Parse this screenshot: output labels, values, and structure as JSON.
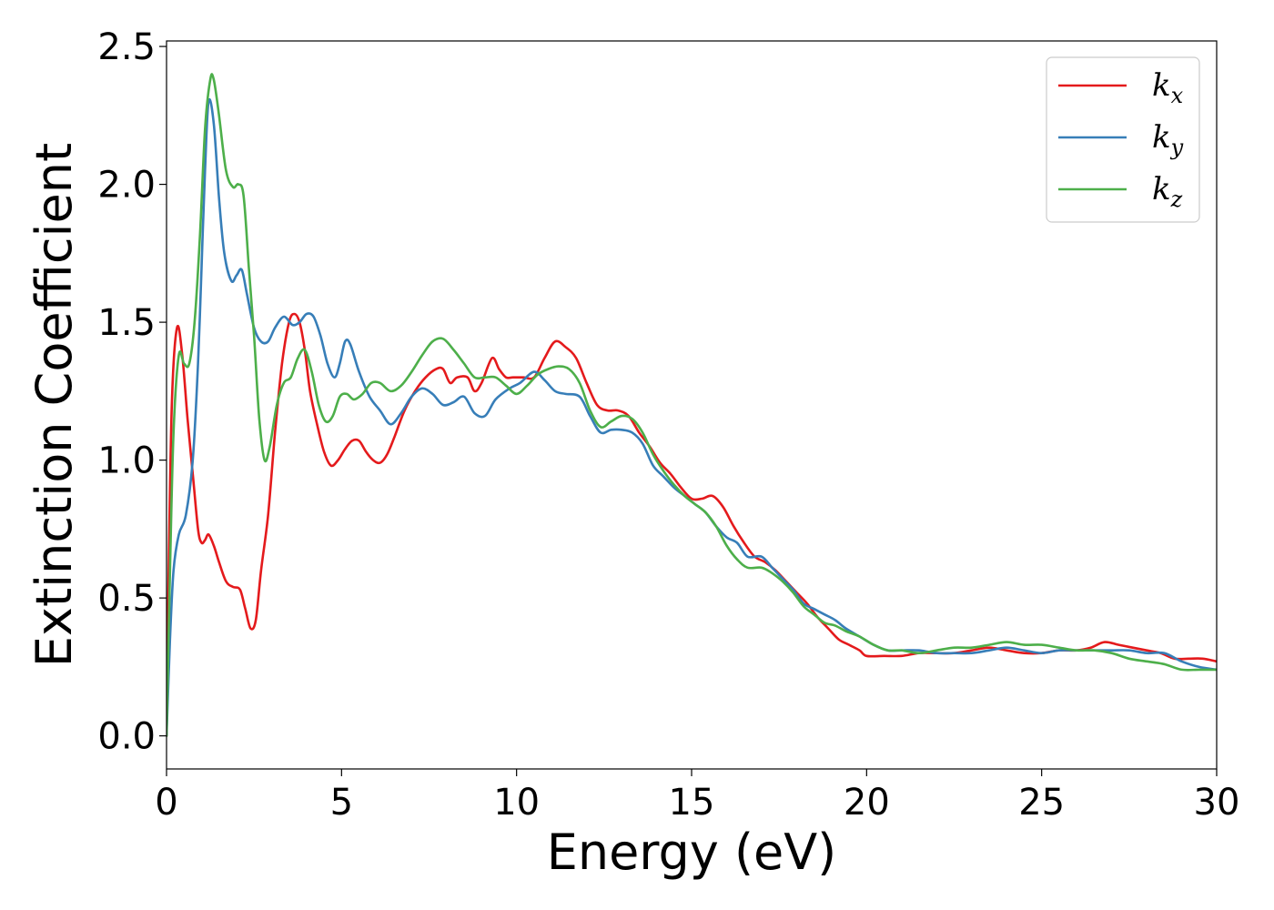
{
  "chart_data": {
    "type": "line",
    "title": "",
    "xlabel": "Energy (eV)",
    "ylabel": "Extinction Coefficient",
    "xlim": [
      0,
      30
    ],
    "ylim": [
      -0.12,
      2.52
    ],
    "xticks": [
      0,
      5,
      10,
      15,
      20,
      25,
      30
    ],
    "xtick_labels": [
      "0",
      "5",
      "10",
      "15",
      "20",
      "25",
      "30"
    ],
    "yticks": [
      0.0,
      0.5,
      1.0,
      1.5,
      2.0,
      2.5
    ],
    "ytick_labels": [
      "0.0",
      "0.5",
      "1.0",
      "1.5",
      "2.0",
      "2.5"
    ],
    "grid": false,
    "legend_position": "top-right",
    "series": [
      {
        "name": "k_x",
        "label_base": "k",
        "label_sub": "x",
        "color": "#e41a1c",
        "points": [
          [
            0,
            0
          ],
          [
            0.05,
            0.5
          ],
          [
            0.15,
            1.2
          ],
          [
            0.3,
            1.48
          ],
          [
            0.45,
            1.38
          ],
          [
            0.6,
            1.15
          ],
          [
            0.75,
            0.95
          ],
          [
            0.9,
            0.75
          ],
          [
            1.0,
            0.7
          ],
          [
            1.1,
            0.71
          ],
          [
            1.2,
            0.73
          ],
          [
            1.35,
            0.69
          ],
          [
            1.5,
            0.63
          ],
          [
            1.7,
            0.56
          ],
          [
            1.9,
            0.54
          ],
          [
            2.1,
            0.53
          ],
          [
            2.25,
            0.46
          ],
          [
            2.4,
            0.39
          ],
          [
            2.55,
            0.42
          ],
          [
            2.7,
            0.6
          ],
          [
            2.9,
            0.8
          ],
          [
            3.1,
            1.1
          ],
          [
            3.3,
            1.35
          ],
          [
            3.5,
            1.5
          ],
          [
            3.65,
            1.53
          ],
          [
            3.8,
            1.5
          ],
          [
            3.95,
            1.4
          ],
          [
            4.1,
            1.25
          ],
          [
            4.3,
            1.13
          ],
          [
            4.5,
            1.03
          ],
          [
            4.7,
            0.98
          ],
          [
            4.9,
            1.0
          ],
          [
            5.1,
            1.04
          ],
          [
            5.3,
            1.07
          ],
          [
            5.5,
            1.07
          ],
          [
            5.7,
            1.03
          ],
          [
            5.9,
            1.0
          ],
          [
            6.1,
            0.99
          ],
          [
            6.3,
            1.02
          ],
          [
            6.5,
            1.08
          ],
          [
            6.8,
            1.18
          ],
          [
            7.1,
            1.25
          ],
          [
            7.4,
            1.3
          ],
          [
            7.7,
            1.33
          ],
          [
            7.9,
            1.33
          ],
          [
            8.1,
            1.28
          ],
          [
            8.3,
            1.3
          ],
          [
            8.6,
            1.3
          ],
          [
            8.8,
            1.25
          ],
          [
            9.0,
            1.28
          ],
          [
            9.3,
            1.37
          ],
          [
            9.5,
            1.33
          ],
          [
            9.7,
            1.3
          ],
          [
            9.9,
            1.3
          ],
          [
            10.2,
            1.3
          ],
          [
            10.5,
            1.3
          ],
          [
            10.8,
            1.37
          ],
          [
            11.1,
            1.43
          ],
          [
            11.4,
            1.41
          ],
          [
            11.7,
            1.37
          ],
          [
            12.0,
            1.28
          ],
          [
            12.3,
            1.2
          ],
          [
            12.6,
            1.18
          ],
          [
            12.9,
            1.18
          ],
          [
            13.2,
            1.16
          ],
          [
            13.5,
            1.1
          ],
          [
            13.8,
            1.05
          ],
          [
            14.1,
            0.99
          ],
          [
            14.4,
            0.95
          ],
          [
            14.7,
            0.9
          ],
          [
            15.0,
            0.86
          ],
          [
            15.3,
            0.86
          ],
          [
            15.6,
            0.87
          ],
          [
            15.9,
            0.83
          ],
          [
            16.2,
            0.76
          ],
          [
            16.5,
            0.7
          ],
          [
            16.8,
            0.65
          ],
          [
            17.1,
            0.63
          ],
          [
            17.4,
            0.6
          ],
          [
            17.7,
            0.56
          ],
          [
            18.0,
            0.52
          ],
          [
            18.3,
            0.48
          ],
          [
            18.6,
            0.43
          ],
          [
            18.9,
            0.39
          ],
          [
            19.2,
            0.35
          ],
          [
            19.5,
            0.33
          ],
          [
            19.8,
            0.31
          ],
          [
            20.0,
            0.29
          ],
          [
            20.5,
            0.29
          ],
          [
            21.0,
            0.29
          ],
          [
            21.5,
            0.3
          ],
          [
            22.0,
            0.3
          ],
          [
            22.5,
            0.3
          ],
          [
            23.0,
            0.31
          ],
          [
            23.5,
            0.32
          ],
          [
            24.0,
            0.31
          ],
          [
            24.5,
            0.3
          ],
          [
            25.0,
            0.3
          ],
          [
            25.5,
            0.31
          ],
          [
            26.0,
            0.31
          ],
          [
            26.4,
            0.32
          ],
          [
            26.8,
            0.34
          ],
          [
            27.2,
            0.33
          ],
          [
            27.6,
            0.32
          ],
          [
            28.0,
            0.31
          ],
          [
            28.4,
            0.3
          ],
          [
            28.8,
            0.28
          ],
          [
            29.2,
            0.28
          ],
          [
            29.6,
            0.28
          ],
          [
            30.0,
            0.27
          ]
        ]
      },
      {
        "name": "k_y",
        "label_base": "k",
        "label_sub": "y",
        "color": "#377eb8",
        "points": [
          [
            0,
            0
          ],
          [
            0.1,
            0.35
          ],
          [
            0.2,
            0.6
          ],
          [
            0.35,
            0.73
          ],
          [
            0.55,
            0.8
          ],
          [
            0.75,
            1.0
          ],
          [
            0.9,
            1.35
          ],
          [
            1.0,
            1.7
          ],
          [
            1.1,
            2.05
          ],
          [
            1.2,
            2.3
          ],
          [
            1.35,
            2.22
          ],
          [
            1.5,
            1.95
          ],
          [
            1.65,
            1.75
          ],
          [
            1.85,
            1.65
          ],
          [
            2.0,
            1.67
          ],
          [
            2.15,
            1.69
          ],
          [
            2.3,
            1.6
          ],
          [
            2.5,
            1.48
          ],
          [
            2.7,
            1.43
          ],
          [
            2.9,
            1.43
          ],
          [
            3.1,
            1.48
          ],
          [
            3.35,
            1.52
          ],
          [
            3.6,
            1.49
          ],
          [
            3.8,
            1.5
          ],
          [
            4.0,
            1.53
          ],
          [
            4.2,
            1.52
          ],
          [
            4.4,
            1.45
          ],
          [
            4.6,
            1.35
          ],
          [
            4.8,
            1.3
          ],
          [
            4.95,
            1.35
          ],
          [
            5.1,
            1.43
          ],
          [
            5.25,
            1.42
          ],
          [
            5.5,
            1.32
          ],
          [
            5.8,
            1.23
          ],
          [
            6.1,
            1.18
          ],
          [
            6.4,
            1.13
          ],
          [
            6.7,
            1.17
          ],
          [
            7.0,
            1.23
          ],
          [
            7.3,
            1.26
          ],
          [
            7.6,
            1.24
          ],
          [
            7.9,
            1.2
          ],
          [
            8.2,
            1.21
          ],
          [
            8.5,
            1.23
          ],
          [
            8.8,
            1.17
          ],
          [
            9.1,
            1.16
          ],
          [
            9.4,
            1.22
          ],
          [
            9.8,
            1.26
          ],
          [
            10.1,
            1.28
          ],
          [
            10.5,
            1.32
          ],
          [
            10.8,
            1.29
          ],
          [
            11.1,
            1.25
          ],
          [
            11.4,
            1.24
          ],
          [
            11.8,
            1.23
          ],
          [
            12.1,
            1.16
          ],
          [
            12.4,
            1.1
          ],
          [
            12.7,
            1.11
          ],
          [
            13.0,
            1.11
          ],
          [
            13.3,
            1.1
          ],
          [
            13.6,
            1.06
          ],
          [
            13.9,
            0.98
          ],
          [
            14.2,
            0.94
          ],
          [
            14.5,
            0.9
          ],
          [
            14.8,
            0.87
          ],
          [
            15.1,
            0.84
          ],
          [
            15.4,
            0.81
          ],
          [
            15.7,
            0.76
          ],
          [
            16.0,
            0.72
          ],
          [
            16.3,
            0.7
          ],
          [
            16.6,
            0.65
          ],
          [
            17.0,
            0.65
          ],
          [
            17.3,
            0.61
          ],
          [
            17.6,
            0.57
          ],
          [
            17.9,
            0.53
          ],
          [
            18.2,
            0.48
          ],
          [
            18.5,
            0.46
          ],
          [
            18.8,
            0.44
          ],
          [
            19.1,
            0.42
          ],
          [
            19.4,
            0.39
          ],
          [
            19.8,
            0.36
          ],
          [
            20.2,
            0.33
          ],
          [
            20.6,
            0.31
          ],
          [
            21.0,
            0.31
          ],
          [
            21.5,
            0.31
          ],
          [
            22.0,
            0.3
          ],
          [
            22.5,
            0.3
          ],
          [
            23.0,
            0.3
          ],
          [
            23.5,
            0.31
          ],
          [
            24.0,
            0.32
          ],
          [
            24.5,
            0.31
          ],
          [
            25.0,
            0.3
          ],
          [
            25.5,
            0.31
          ],
          [
            26.0,
            0.31
          ],
          [
            26.5,
            0.31
          ],
          [
            27.0,
            0.31
          ],
          [
            27.5,
            0.31
          ],
          [
            28.0,
            0.3
          ],
          [
            28.5,
            0.3
          ],
          [
            29.0,
            0.27
          ],
          [
            29.5,
            0.25
          ],
          [
            30.0,
            0.24
          ]
        ]
      },
      {
        "name": "k_z",
        "label_base": "k",
        "label_sub": "z",
        "color": "#4daf4a",
        "points": [
          [
            0,
            0
          ],
          [
            0.1,
            0.6
          ],
          [
            0.2,
            1.1
          ],
          [
            0.35,
            1.38
          ],
          [
            0.5,
            1.35
          ],
          [
            0.65,
            1.35
          ],
          [
            0.8,
            1.5
          ],
          [
            0.95,
            1.8
          ],
          [
            1.1,
            2.2
          ],
          [
            1.25,
            2.38
          ],
          [
            1.35,
            2.38
          ],
          [
            1.5,
            2.25
          ],
          [
            1.7,
            2.05
          ],
          [
            1.9,
            1.99
          ],
          [
            2.05,
            2.0
          ],
          [
            2.2,
            1.96
          ],
          [
            2.35,
            1.7
          ],
          [
            2.5,
            1.45
          ],
          [
            2.65,
            1.15
          ],
          [
            2.8,
            1.0
          ],
          [
            2.95,
            1.05
          ],
          [
            3.15,
            1.2
          ],
          [
            3.35,
            1.28
          ],
          [
            3.55,
            1.3
          ],
          [
            3.75,
            1.37
          ],
          [
            3.95,
            1.4
          ],
          [
            4.15,
            1.32
          ],
          [
            4.35,
            1.2
          ],
          [
            4.55,
            1.14
          ],
          [
            4.75,
            1.16
          ],
          [
            4.95,
            1.23
          ],
          [
            5.15,
            1.24
          ],
          [
            5.35,
            1.22
          ],
          [
            5.6,
            1.24
          ],
          [
            5.85,
            1.28
          ],
          [
            6.1,
            1.28
          ],
          [
            6.4,
            1.25
          ],
          [
            6.7,
            1.27
          ],
          [
            7.0,
            1.32
          ],
          [
            7.3,
            1.38
          ],
          [
            7.6,
            1.43
          ],
          [
            7.9,
            1.44
          ],
          [
            8.2,
            1.4
          ],
          [
            8.5,
            1.35
          ],
          [
            8.8,
            1.3
          ],
          [
            9.1,
            1.3
          ],
          [
            9.4,
            1.3
          ],
          [
            9.7,
            1.27
          ],
          [
            10.0,
            1.24
          ],
          [
            10.3,
            1.27
          ],
          [
            10.6,
            1.31
          ],
          [
            10.9,
            1.33
          ],
          [
            11.2,
            1.34
          ],
          [
            11.5,
            1.33
          ],
          [
            11.8,
            1.28
          ],
          [
            12.1,
            1.18
          ],
          [
            12.4,
            1.12
          ],
          [
            12.7,
            1.14
          ],
          [
            13.0,
            1.16
          ],
          [
            13.3,
            1.15
          ],
          [
            13.6,
            1.1
          ],
          [
            13.9,
            1.02
          ],
          [
            14.2,
            0.96
          ],
          [
            14.5,
            0.91
          ],
          [
            14.8,
            0.87
          ],
          [
            15.1,
            0.84
          ],
          [
            15.4,
            0.81
          ],
          [
            15.7,
            0.76
          ],
          [
            16.0,
            0.69
          ],
          [
            16.3,
            0.64
          ],
          [
            16.6,
            0.61
          ],
          [
            17.0,
            0.61
          ],
          [
            17.3,
            0.59
          ],
          [
            17.6,
            0.56
          ],
          [
            17.9,
            0.52
          ],
          [
            18.2,
            0.47
          ],
          [
            18.5,
            0.44
          ],
          [
            18.8,
            0.41
          ],
          [
            19.1,
            0.4
          ],
          [
            19.4,
            0.38
          ],
          [
            19.8,
            0.36
          ],
          [
            20.2,
            0.33
          ],
          [
            20.6,
            0.31
          ],
          [
            21.0,
            0.31
          ],
          [
            21.5,
            0.3
          ],
          [
            22.0,
            0.31
          ],
          [
            22.5,
            0.32
          ],
          [
            23.0,
            0.32
          ],
          [
            23.5,
            0.33
          ],
          [
            24.0,
            0.34
          ],
          [
            24.5,
            0.33
          ],
          [
            25.0,
            0.33
          ],
          [
            25.5,
            0.32
          ],
          [
            26.0,
            0.31
          ],
          [
            26.5,
            0.31
          ],
          [
            27.0,
            0.3
          ],
          [
            27.5,
            0.28
          ],
          [
            28.0,
            0.27
          ],
          [
            28.5,
            0.26
          ],
          [
            29.0,
            0.24
          ],
          [
            29.5,
            0.24
          ],
          [
            30.0,
            0.24
          ]
        ]
      }
    ]
  }
}
